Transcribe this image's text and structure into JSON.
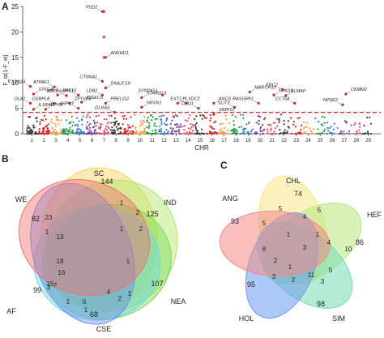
{
  "panels": {
    "a": {
      "label": "A"
    },
    "b": {
      "label": "B"
    },
    "c": {
      "label": "C"
    }
  },
  "chart_data": [
    {
      "type": "scatter",
      "panel": "A",
      "xlabel": "CHR",
      "ylabel": "F_st(1-F_st)",
      "ylim": [
        0,
        25
      ],
      "yticks": [
        0,
        5,
        10,
        15,
        20,
        25
      ],
      "categories": [
        "1",
        "2",
        "3",
        "4",
        "5",
        "6",
        "7",
        "8",
        "9",
        "10",
        "11",
        "12",
        "13",
        "14",
        "15",
        "16",
        "17",
        "18",
        "19",
        "20",
        "21",
        "22",
        "23",
        "24",
        "25",
        "26",
        "27",
        "28",
        "29"
      ],
      "threshold": 4.2,
      "grid": false,
      "colors": [
        "#3a3a3a",
        "#d6262d",
        "#f0a44a",
        "#2a9a49",
        "#3c7cc0",
        "#7b3f99",
        "#e5506d"
      ],
      "top_points": [
        {
          "chr": "7",
          "value": 24.0
        },
        {
          "chr": "7",
          "value": 19.0
        },
        {
          "chr": "7",
          "value": 15.0
        }
      ],
      "annotations": [
        {
          "gene": "PSD2",
          "chr": "7",
          "value": 24.0
        },
        {
          "gene": "ANKHD1",
          "chr": "7",
          "value": 15.0
        },
        {
          "gene": "CTNNA1",
          "chr": "7",
          "value": 10.3
        },
        {
          "gene": "DNAJC18",
          "chr": "7",
          "value": 9.0
        },
        {
          "gene": "LDB2",
          "chr": "7",
          "value": 7.6
        },
        {
          "gene": "PRELID2",
          "chr": "7",
          "value": 6.0
        },
        {
          "gene": "CLDN14",
          "chr": "1",
          "value": 9.3
        },
        {
          "gene": "ST6GAL1",
          "chr": "1",
          "value": 7.8
        },
        {
          "gene": "OLA1",
          "chr": "1",
          "value": 6.0
        },
        {
          "gene": "IL1RAP",
          "chr": "1",
          "value": 4.8
        },
        {
          "gene": "ATPAF1",
          "chr": "3",
          "value": 9.2
        },
        {
          "gene": "EPS15",
          "chr": "3",
          "value": 7.6
        },
        {
          "gene": "OSBPL8",
          "chr": "3",
          "value": 6.0
        },
        {
          "gene": "DPYD",
          "chr": "2",
          "value": 4.8
        },
        {
          "gene": "ABCB4",
          "chr": "4",
          "value": 7.5
        },
        {
          "gene": "ZFYVE9",
          "chr": "4",
          "value": 6.0
        },
        {
          "gene": "WIF1",
          "chr": "5",
          "value": 7.6
        },
        {
          "gene": "IQSEC3",
          "chr": "5",
          "value": 6.2
        },
        {
          "gene": "ARPL3",
          "chr": "5",
          "value": 5.0
        },
        {
          "gene": "STARD13",
          "chr": "10",
          "value": 7.1
        },
        {
          "gene": "GLRA3",
          "chr": "8",
          "value": 4.2
        },
        {
          "gene": "NRXN1",
          "chr": "10",
          "value": 5.2
        },
        {
          "gene": "SYNDIG1",
          "chr": "12",
          "value": 7.6
        },
        {
          "gene": "PLXDC2",
          "chr": "13",
          "value": 6.0
        },
        {
          "gene": "EXT1",
          "chr": "14",
          "value": 6.0
        },
        {
          "gene": "ANO3",
          "chr": "16",
          "value": 6.0
        },
        {
          "gene": "DXO1",
          "chr": "15",
          "value": 5.0
        },
        {
          "gene": "SIMP10",
          "chr": "16",
          "value": 3.8
        },
        {
          "gene": "SLIT3",
          "chr": "18",
          "value": 5.2
        },
        {
          "gene": "MARCH10",
          "chr": "19",
          "value": 8.2
        },
        {
          "gene": "RASGRF1",
          "chr": "20",
          "value": 6.0
        },
        {
          "gene": "NPAS3",
          "chr": "21",
          "value": 7.6
        },
        {
          "gene": "ERC2",
          "chr": "22",
          "value": 8.7
        },
        {
          "gene": "SLMAP",
          "chr": "22",
          "value": 7.5
        },
        {
          "gene": "CCT6A",
          "chr": "23",
          "value": 6.0
        },
        {
          "gene": "CKMM2",
          "chr": "27",
          "value": 7.8
        },
        {
          "gene": "NPSE2",
          "chr": "27",
          "value": 5.7
        }
      ]
    },
    {
      "type": "venn",
      "panel": "B",
      "sets": [
        {
          "name": "SC",
          "color": "#f6d55c"
        },
        {
          "name": "IND",
          "color": "#aee66b"
        },
        {
          "name": "NEA",
          "color": "#7cd955"
        },
        {
          "name": "CSE",
          "color": "#6fd6e8"
        },
        {
          "name": "AF",
          "color": "#6b8de8"
        },
        {
          "name": "WE",
          "color": "#f07070"
        }
      ],
      "visible_counts": [
        "144",
        "125",
        "107",
        "68",
        "99",
        "82",
        "23",
        "13",
        "18",
        "16",
        "15",
        "7",
        "3",
        "1",
        "2",
        "2",
        "1",
        "1",
        "1",
        "4",
        "6",
        "1",
        "1",
        "1",
        "2"
      ]
    },
    {
      "type": "venn",
      "panel": "C",
      "sets": [
        {
          "name": "CHL",
          "color": "#f8e58a"
        },
        {
          "name": "HEF",
          "color": "#b8e87d"
        },
        {
          "name": "SIM",
          "color": "#76dbb4"
        },
        {
          "name": "HOL",
          "color": "#6d9df0"
        },
        {
          "name": "ANG",
          "color": "#f38b86"
        }
      ],
      "visible_counts": [
        "74",
        "86",
        "98",
        "95",
        "93",
        "5",
        "4",
        "5",
        "1",
        "4",
        "10",
        "3",
        "8",
        "1",
        "2",
        "11",
        "3",
        "5",
        "2",
        "1",
        "3",
        "5"
      ]
    }
  ]
}
